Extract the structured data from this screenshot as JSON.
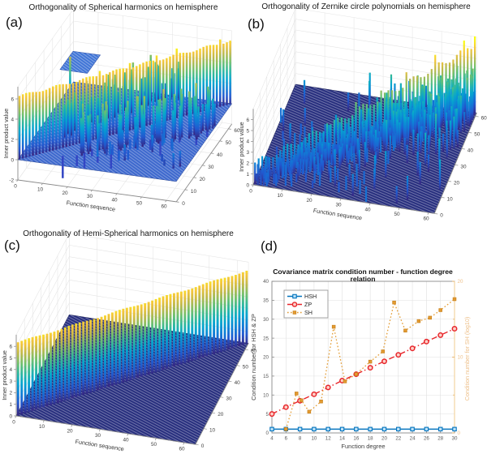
{
  "panels": {
    "a": {
      "label": "(a)",
      "title": "Orthogonality of Spherical harmonics on hemisphere",
      "xlabel": "Function sequence",
      "zlabel": "Inner product value",
      "xticks": [
        0,
        10,
        20,
        30,
        40,
        50,
        60
      ],
      "yticks": [
        0,
        10,
        20,
        30,
        40,
        50,
        60
      ],
      "zticks": [
        -2,
        0,
        2,
        4,
        6
      ]
    },
    "b": {
      "label": "(b)",
      "title": "Orthogonality of Zernike circle polynomials on hemisphere",
      "xlabel": "Function sequence",
      "zlabel": "Inner product value",
      "xticks": [
        0,
        10,
        20,
        30,
        40,
        50,
        60
      ],
      "yticks": [
        0,
        10,
        20,
        30,
        40,
        50,
        60
      ],
      "zticks": [
        0,
        1,
        2,
        3,
        4,
        5,
        6
      ]
    },
    "c": {
      "label": "(c)",
      "title": "Orthogonality of Hemi-Spherical harmonics on hemisphere",
      "xlabel": "Function sequence",
      "zlabel": "Inner product value",
      "xticks": [
        0,
        10,
        20,
        30,
        40,
        50,
        60
      ],
      "yticks": [
        0,
        10,
        20,
        30,
        40,
        50,
        60
      ],
      "zticks": [
        0,
        1,
        2,
        3,
        4,
        5,
        6
      ]
    },
    "d": {
      "label": "(d)",
      "title": "Covariance matrix condition number - function degree relation",
      "xlabel": "Function degree",
      "ylabel_left": "Condition number for HSH & ZP",
      "ylabel_right": "Condition number for SH (log10)",
      "xticks": [
        4,
        6,
        8,
        10,
        12,
        14,
        16,
        18,
        20,
        22,
        24,
        26,
        28,
        30
      ],
      "yticks_left": [
        0,
        5,
        10,
        15,
        20,
        25,
        30,
        35,
        40
      ],
      "yticks_right": [
        0,
        10,
        20
      ],
      "legend": [
        "HSH",
        "ZP",
        "SH"
      ]
    }
  },
  "chart_data": [
    {
      "type": "bar3",
      "panel": "a",
      "title": "Orthogonality of Spherical harmonics on hemisphere",
      "xlabel": "Function sequence",
      "ylabel": "Function sequence",
      "zlabel": "Inner product value",
      "n_functions": 64,
      "xlim": [
        0,
        60
      ],
      "ylim": [
        0,
        60
      ],
      "zlim": [
        -2,
        6
      ],
      "diagonal_inner_product_approx": 6.3,
      "off_diagonal": "clusters of non-zero inner products (about 1.5 to 5.5) near the diagonal, both sides, plus scattered negative inner products down to about -2.2 hanging below the zero plane",
      "zero_plane": "dense mesh of near-zero bars at z = 0 covering the 64 x 64 index grid",
      "raised_block": "small raised mesh block of moderate inner-product values behind the diagonal wall near low indices"
    },
    {
      "type": "bar3",
      "panel": "b",
      "title": "Orthogonality of Zernike circle polynomials on hemisphere",
      "xlabel": "Function sequence",
      "ylabel": "Function sequence",
      "zlabel": "Inner product value",
      "n_functions": 64,
      "xlim": [
        0,
        60
      ],
      "ylim": [
        0,
        60
      ],
      "zlim": [
        0,
        6
      ],
      "diagonal_inner_product_range": [
        2,
        6.5
      ],
      "off_diagonal": "dense forest of non-zero inner products across most index pairs forming diagonal ridges; heights grow with function index up to about 6.5 (strong non-orthogonality)",
      "zero_plane": "hatched mesh of zero bars visible between the ridges"
    },
    {
      "type": "bar3",
      "panel": "c",
      "title": "Orthogonality of Hemi-Spherical harmonics on hemisphere",
      "xlabel": "Function sequence",
      "ylabel": "Function sequence",
      "zlabel": "Inner product value",
      "n_functions": 64,
      "xlim": [
        0,
        60
      ],
      "ylim": [
        0,
        60
      ],
      "zlim": [
        0,
        6
      ],
      "diagonal_inner_product_approx": 6.3,
      "off_diagonal": "essentially zero everywhere off the diagonal (orthogonal basis on hemisphere)",
      "zero_plane": "flat mesh of zero bars at z = 0"
    },
    {
      "type": "line",
      "panel": "d",
      "title": "Covariance matrix condition number - function degree relation",
      "xlabel": "Function degree",
      "ylabel_left": "Condition number for HSH & ZP",
      "ylabel_right": "Condition number for SH (log10)",
      "xlim": [
        4,
        30
      ],
      "ylim_left": [
        0,
        40
      ],
      "ylim_right": [
        0,
        20
      ],
      "legend_position": "top-left",
      "grid": true,
      "series": [
        {
          "name": "HSH",
          "axis": "left",
          "style": "solid",
          "marker": "square",
          "x": [
            4,
            6,
            8,
            10,
            12,
            14,
            16,
            18,
            20,
            22,
            24,
            26,
            28,
            30
          ],
          "y": [
            1,
            1,
            1,
            1,
            1,
            1,
            1,
            1,
            1,
            1,
            1,
            1,
            1,
            1
          ]
        },
        {
          "name": "ZP",
          "axis": "left",
          "style": "dash-dot",
          "marker": "circle",
          "x": [
            4,
            6,
            8,
            10,
            12,
            14,
            16,
            18,
            20,
            22,
            24,
            26,
            28,
            30
          ],
          "y": [
            5.0,
            6.8,
            8.5,
            10.2,
            12.0,
            13.8,
            15.5,
            17.2,
            18.9,
            20.6,
            22.3,
            24.1,
            25.8,
            27.5
          ]
        },
        {
          "name": "SH",
          "axis": "right",
          "style": "dotted",
          "marker": "square-filled",
          "x": [
            6,
            7.5,
            8.2,
            9.3,
            11,
            12.8,
            14.4,
            16,
            18,
            19.8,
            21.4,
            23,
            24.9,
            26.5,
            28,
            30
          ],
          "y": [
            0.5,
            5.2,
            4.3,
            2.8,
            4.15,
            14.0,
            6.8,
            7.75,
            9.4,
            10.75,
            17.2,
            13.5,
            14.75,
            15.2,
            16.2,
            17.65
          ]
        }
      ]
    }
  ],
  "colors": {
    "hsh": "#0072bd",
    "zp": "#e8252a",
    "sh": "#e39b32",
    "sh_axis": "#eec08a",
    "mesh_dark": "#262d7d",
    "mesh_blue": "#3c67cd",
    "negative_bar": "#3346c4",
    "grid": "#e0e0e0",
    "spine": "#8a8a8a",
    "tick_text": "#404040"
  }
}
